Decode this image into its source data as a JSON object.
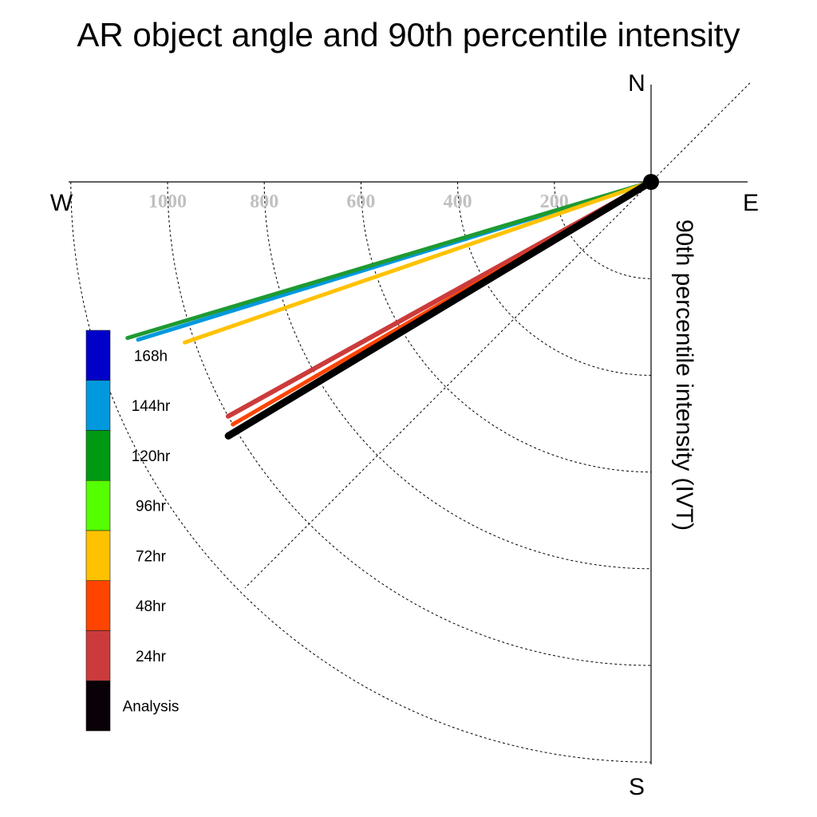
{
  "chart_data": {
    "type": "polar-vector",
    "title": "AR object angle and 90th percentile intensity",
    "ylabel": "90th percentile intensity (IVT)",
    "directions": {
      "north": "N",
      "south": "S",
      "west": "W",
      "east": "E"
    },
    "radial_ticks": [
      "200",
      "400",
      "600",
      "800",
      "1000"
    ],
    "radial_tick_values": [
      200,
      400,
      600,
      800,
      1000
    ],
    "rings": [
      200,
      400,
      600,
      800,
      1000,
      1200
    ],
    "series": [
      {
        "name": "144hr",
        "color": "#0099dd",
        "angle_deg_from_east": 197.1,
        "intensity": 1110,
        "width": 5
      },
      {
        "name": "120hr",
        "color": "#1e9a32",
        "angle_deg_from_east": 196.6,
        "intensity": 1130,
        "width": 5
      },
      {
        "name": "72hr",
        "color": "#ffc200",
        "angle_deg_from_east": 199.0,
        "intensity": 1020,
        "width": 5
      },
      {
        "name": "24hr",
        "color": "#cc3b3b",
        "angle_deg_from_east": 209.0,
        "intensity": 1000,
        "width": 6
      },
      {
        "name": "48hr",
        "color": "#ff4400",
        "angle_deg_from_east": 210.1,
        "intensity": 1000,
        "width": 5
      },
      {
        "name": "Analysis",
        "color": "#000000",
        "angle_deg_from_east": 211.0,
        "intensity": 1020,
        "width": 9
      }
    ],
    "legend": [
      {
        "label": "168hr",
        "color": "#0000c8",
        "display": "168h"
      },
      {
        "label": "144hr",
        "color": "#0099dd",
        "display": "144hr"
      },
      {
        "label": "120hr",
        "color": "#009a12",
        "display": "120hr"
      },
      {
        "label": "96hr",
        "color": "#55ff00",
        "display": "96hr"
      },
      {
        "label": "72hr",
        "color": "#ffc200",
        "display": "72hr"
      },
      {
        "label": "48hr",
        "color": "#ff4400",
        "display": "48hr"
      },
      {
        "label": "24hr",
        "color": "#cc3b3b",
        "display": "24hr"
      },
      {
        "label": "Analysis",
        "color": "#0a0008",
        "display": "Analysis"
      }
    ],
    "legend_position": "left"
  }
}
